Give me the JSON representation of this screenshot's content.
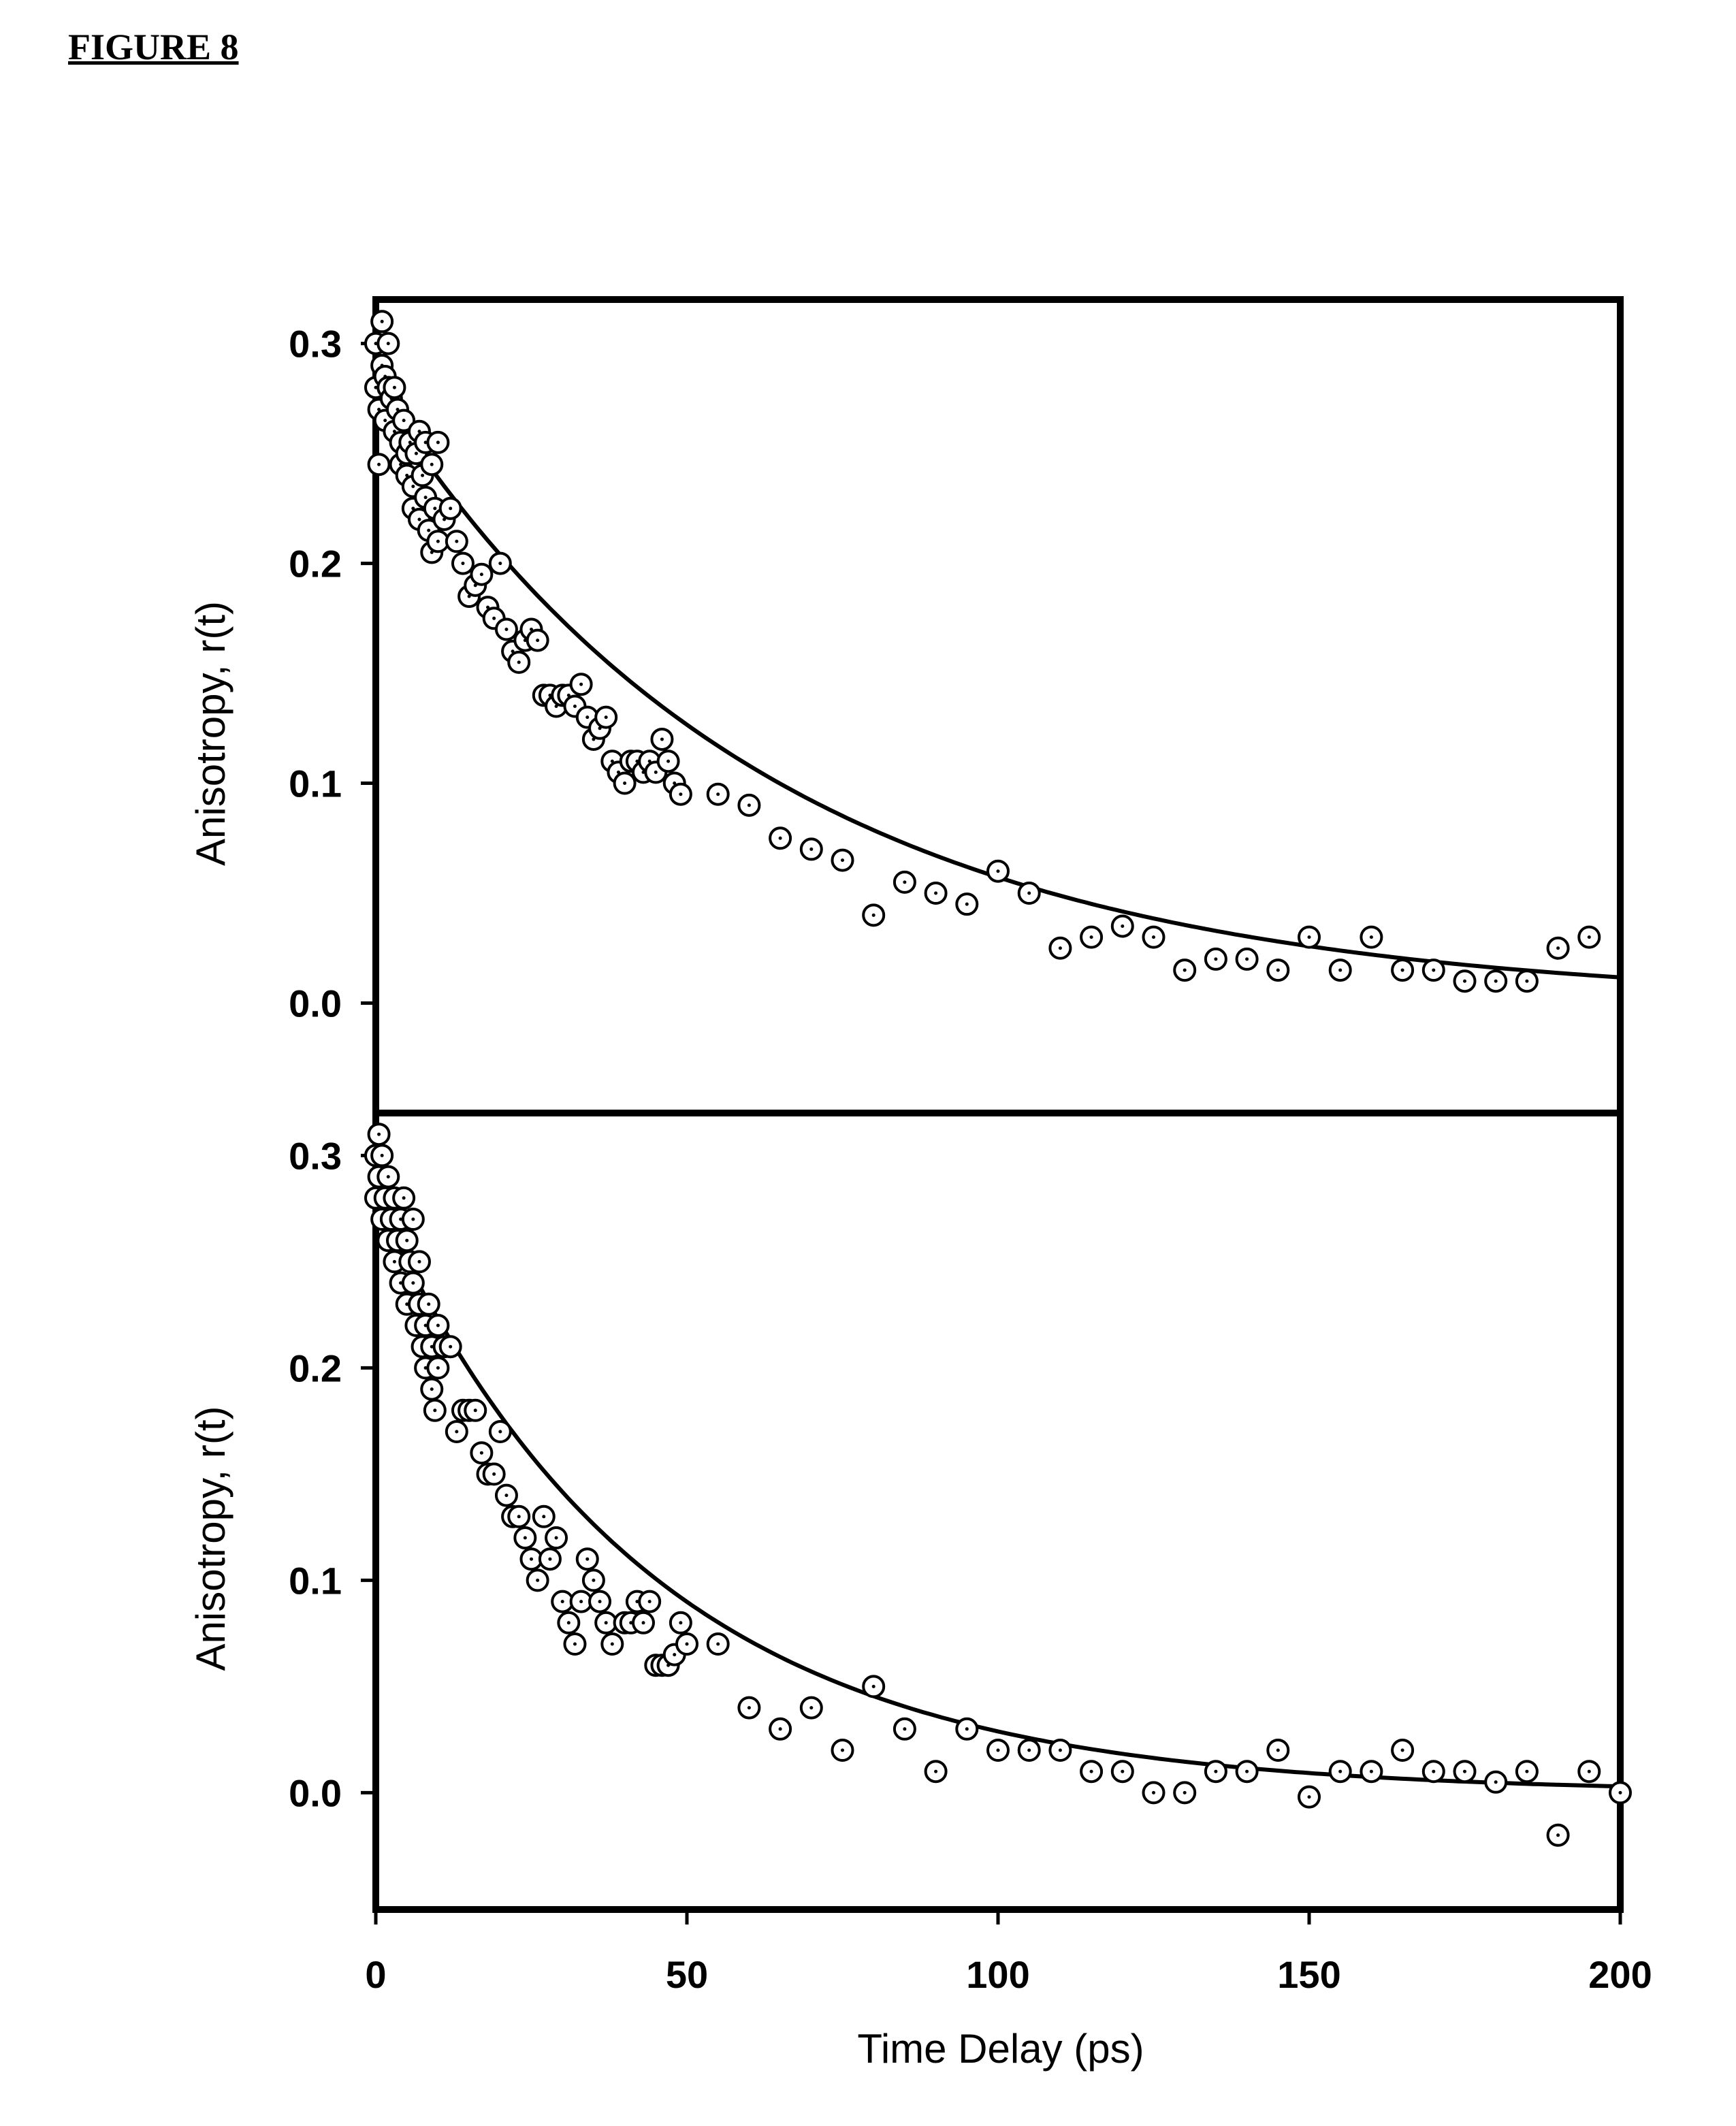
{
  "figure_title": "FIGURE 8",
  "chart_data": [
    {
      "type": "scatter",
      "title": "",
      "xlabel": "",
      "ylabel": "Anisotropy, r(t)",
      "xlim": [
        0,
        200
      ],
      "ylim": [
        -0.05,
        0.32
      ],
      "yticks": [
        0.0,
        0.1,
        0.2,
        0.3
      ],
      "ytick_labels": [
        "0.0",
        "0.1",
        "0.2",
        "0.3"
      ],
      "grid": false,
      "fit": {
        "a": 0.28,
        "tau": 63
      },
      "points": [
        [
          0,
          0.3
        ],
        [
          0,
          0.28
        ],
        [
          0.5,
          0.27
        ],
        [
          0.5,
          0.245
        ],
        [
          1,
          0.31
        ],
        [
          1,
          0.29
        ],
        [
          1.5,
          0.285
        ],
        [
          1.5,
          0.265
        ],
        [
          2,
          0.3
        ],
        [
          2,
          0.28
        ],
        [
          2.5,
          0.275
        ],
        [
          3,
          0.28
        ],
        [
          3,
          0.26
        ],
        [
          3.5,
          0.27
        ],
        [
          4,
          0.255
        ],
        [
          4,
          0.245
        ],
        [
          4.5,
          0.265
        ],
        [
          5,
          0.25
        ],
        [
          5,
          0.24
        ],
        [
          5.5,
          0.255
        ],
        [
          6,
          0.235
        ],
        [
          6,
          0.225
        ],
        [
          6.5,
          0.25
        ],
        [
          7,
          0.26
        ],
        [
          7,
          0.22
        ],
        [
          7.5,
          0.24
        ],
        [
          8,
          0.255
        ],
        [
          8,
          0.23
        ],
        [
          8.5,
          0.215
        ],
        [
          9,
          0.245
        ],
        [
          9,
          0.205
        ],
        [
          9.5,
          0.225
        ],
        [
          10,
          0.255
        ],
        [
          10,
          0.21
        ],
        [
          11,
          0.22
        ],
        [
          12,
          0.225
        ],
        [
          13,
          0.21
        ],
        [
          14,
          0.2
        ],
        [
          15,
          0.185
        ],
        [
          16,
          0.19
        ],
        [
          17,
          0.195
        ],
        [
          18,
          0.18
        ],
        [
          19,
          0.175
        ],
        [
          20,
          0.2
        ],
        [
          21,
          0.17
        ],
        [
          22,
          0.16
        ],
        [
          23,
          0.155
        ],
        [
          24,
          0.165
        ],
        [
          25,
          0.17
        ],
        [
          26,
          0.165
        ],
        [
          27,
          0.14
        ],
        [
          28,
          0.14
        ],
        [
          29,
          0.135
        ],
        [
          30,
          0.14
        ],
        [
          31,
          0.14
        ],
        [
          32,
          0.135
        ],
        [
          33,
          0.145
        ],
        [
          34,
          0.13
        ],
        [
          35,
          0.12
        ],
        [
          36,
          0.125
        ],
        [
          37,
          0.13
        ],
        [
          38,
          0.11
        ],
        [
          39,
          0.105
        ],
        [
          40,
          0.1
        ],
        [
          41,
          0.11
        ],
        [
          42,
          0.11
        ],
        [
          43,
          0.105
        ],
        [
          44,
          0.11
        ],
        [
          45,
          0.105
        ],
        [
          46,
          0.12
        ],
        [
          47,
          0.11
        ],
        [
          48,
          0.1
        ],
        [
          49,
          0.095
        ],
        [
          55,
          0.095
        ],
        [
          60,
          0.09
        ],
        [
          65,
          0.075
        ],
        [
          70,
          0.07
        ],
        [
          75,
          0.065
        ],
        [
          80,
          0.04
        ],
        [
          85,
          0.055
        ],
        [
          90,
          0.05
        ],
        [
          95,
          0.045
        ],
        [
          100,
          0.06
        ],
        [
          105,
          0.05
        ],
        [
          110,
          0.025
        ],
        [
          115,
          0.03
        ],
        [
          120,
          0.035
        ],
        [
          125,
          0.03
        ],
        [
          130,
          0.015
        ],
        [
          135,
          0.02
        ],
        [
          140,
          0.02
        ],
        [
          145,
          0.015
        ],
        [
          150,
          0.03
        ],
        [
          155,
          0.015
        ],
        [
          160,
          0.03
        ],
        [
          165,
          0.015
        ],
        [
          170,
          0.015
        ],
        [
          175,
          0.01
        ],
        [
          180,
          0.01
        ],
        [
          185,
          0.01
        ],
        [
          190,
          0.025
        ],
        [
          195,
          0.03
        ]
      ]
    },
    {
      "type": "scatter",
      "title": "",
      "xlabel": "Time Delay (ps)",
      "ylabel": "Anisotropy, r(t)",
      "xlim": [
        0,
        200
      ],
      "ylim": [
        -0.055,
        0.32
      ],
      "xticks": [
        0,
        50,
        100,
        150,
        200
      ],
      "xtick_labels": [
        "0",
        "50",
        "100",
        "150",
        "200"
      ],
      "yticks": [
        0.0,
        0.1,
        0.2,
        0.3
      ],
      "ytick_labels": [
        "0.0",
        "0.1",
        "0.2",
        "0.3"
      ],
      "grid": false,
      "fit": {
        "a": 0.28,
        "tau": 44
      },
      "points": [
        [
          0,
          0.3
        ],
        [
          0,
          0.28
        ],
        [
          0.5,
          0.31
        ],
        [
          0.5,
          0.29
        ],
        [
          1,
          0.3
        ],
        [
          1,
          0.27
        ],
        [
          1.5,
          0.28
        ],
        [
          2,
          0.26
        ],
        [
          2,
          0.29
        ],
        [
          2.5,
          0.27
        ],
        [
          3,
          0.28
        ],
        [
          3,
          0.25
        ],
        [
          3.5,
          0.26
        ],
        [
          4,
          0.24
        ],
        [
          4,
          0.27
        ],
        [
          4.5,
          0.28
        ],
        [
          5,
          0.23
        ],
        [
          5,
          0.26
        ],
        [
          5.5,
          0.25
        ],
        [
          6,
          0.27
        ],
        [
          6,
          0.24
        ],
        [
          6.5,
          0.22
        ],
        [
          7,
          0.25
        ],
        [
          7,
          0.23
        ],
        [
          7.5,
          0.21
        ],
        [
          8,
          0.22
        ],
        [
          8,
          0.2
        ],
        [
          8.5,
          0.23
        ],
        [
          9,
          0.19
        ],
        [
          9,
          0.21
        ],
        [
          9.5,
          0.18
        ],
        [
          10,
          0.2
        ],
        [
          10,
          0.22
        ],
        [
          11,
          0.21
        ],
        [
          12,
          0.21
        ],
        [
          13,
          0.17
        ],
        [
          14,
          0.18
        ],
        [
          15,
          0.18
        ],
        [
          16,
          0.18
        ],
        [
          17,
          0.16
        ],
        [
          18,
          0.15
        ],
        [
          19,
          0.15
        ],
        [
          20,
          0.17
        ],
        [
          21,
          0.14
        ],
        [
          22,
          0.13
        ],
        [
          23,
          0.13
        ],
        [
          24,
          0.12
        ],
        [
          25,
          0.11
        ],
        [
          26,
          0.1
        ],
        [
          27,
          0.13
        ],
        [
          28,
          0.11
        ],
        [
          29,
          0.12
        ],
        [
          30,
          0.09
        ],
        [
          31,
          0.08
        ],
        [
          32,
          0.07
        ],
        [
          33,
          0.09
        ],
        [
          34,
          0.11
        ],
        [
          35,
          0.1
        ],
        [
          36,
          0.09
        ],
        [
          37,
          0.08
        ],
        [
          38,
          0.07
        ],
        [
          40,
          0.08
        ],
        [
          41,
          0.08
        ],
        [
          42,
          0.09
        ],
        [
          43,
          0.08
        ],
        [
          44,
          0.09
        ],
        [
          45,
          0.06
        ],
        [
          46,
          0.06
        ],
        [
          47,
          0.06
        ],
        [
          48,
          0.065
        ],
        [
          49,
          0.08
        ],
        [
          50,
          0.07
        ],
        [
          55,
          0.07
        ],
        [
          60,
          0.04
        ],
        [
          65,
          0.03
        ],
        [
          70,
          0.04
        ],
        [
          75,
          0.02
        ],
        [
          80,
          0.05
        ],
        [
          85,
          0.03
        ],
        [
          90,
          0.01
        ],
        [
          95,
          0.03
        ],
        [
          100,
          0.02
        ],
        [
          105,
          0.02
        ],
        [
          110,
          0.02
        ],
        [
          115,
          0.01
        ],
        [
          120,
          0.01
        ],
        [
          125,
          0.0
        ],
        [
          130,
          0.0
        ],
        [
          135,
          0.01
        ],
        [
          140,
          0.01
        ],
        [
          145,
          0.02
        ],
        [
          150,
          -0.002
        ],
        [
          155,
          0.01
        ],
        [
          160,
          0.01
        ],
        [
          165,
          0.02
        ],
        [
          170,
          0.01
        ],
        [
          175,
          0.01
        ],
        [
          180,
          0.005
        ],
        [
          185,
          0.01
        ],
        [
          190,
          -0.02
        ],
        [
          195,
          0.01
        ],
        [
          200,
          0.0
        ]
      ]
    }
  ]
}
